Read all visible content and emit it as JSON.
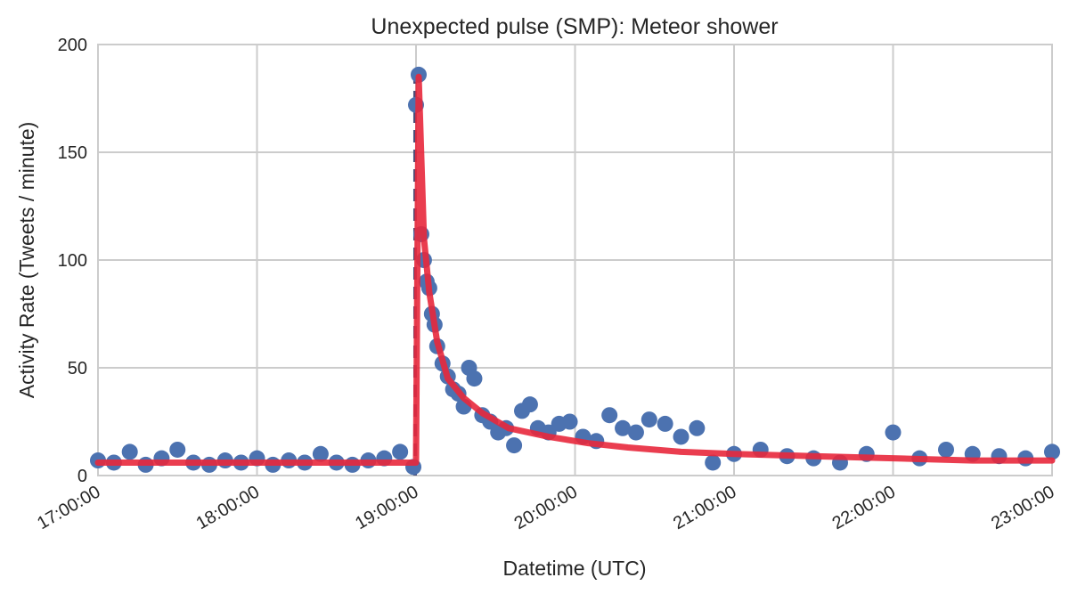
{
  "chart_data": {
    "type": "scatter",
    "title": "Unexpected pulse (SMP): Meteor shower",
    "xlabel": "Datetime (UTC)",
    "ylabel": "Activity Rate (Tweets / minute)",
    "xlim": [
      "17:00:00",
      "23:00:00"
    ],
    "ylim": [
      0,
      200
    ],
    "grid": true,
    "x_ticks": [
      "17:00:00",
      "18:00:00",
      "19:00:00",
      "20:00:00",
      "21:00:00",
      "22:00:00",
      "23:00:00"
    ],
    "y_ticks": [
      0,
      50,
      100,
      150,
      200
    ],
    "colors": {
      "points": "#4c72b0",
      "fit": "#e8283c",
      "dashed": "#4c4e78",
      "grid": "#cccccc"
    },
    "series": [
      {
        "kind": "points",
        "x": [
          "17:00:00",
          "17:06:00",
          "17:12:00",
          "17:18:00",
          "17:24:00",
          "17:30:00",
          "17:36:00",
          "17:42:00",
          "17:48:00",
          "17:54:00",
          "18:00:00",
          "18:06:00",
          "18:12:00",
          "18:18:00",
          "18:24:00",
          "18:30:00",
          "18:36:00",
          "18:42:00",
          "18:48:00",
          "18:54:00",
          "18:59:00",
          "19:00:00",
          "19:01:00",
          "19:02:00",
          "19:03:00",
          "19:04:00",
          "19:05:00",
          "19:06:00",
          "19:07:00",
          "19:08:00",
          "19:10:00",
          "19:12:00",
          "19:14:00",
          "19:16:00",
          "19:18:00",
          "19:20:00",
          "19:22:00",
          "19:25:00",
          "19:28:00",
          "19:31:00",
          "19:34:00",
          "19:37:00",
          "19:40:00",
          "19:43:00",
          "19:46:00",
          "19:50:00",
          "19:54:00",
          "19:58:00",
          "20:03:00",
          "20:08:00",
          "20:13:00",
          "20:18:00",
          "20:23:00",
          "20:28:00",
          "20:34:00",
          "20:40:00",
          "20:46:00",
          "20:52:00",
          "21:00:00",
          "21:10:00",
          "21:20:00",
          "21:30:00",
          "21:40:00",
          "21:50:00",
          "22:00:00",
          "22:10:00",
          "22:20:00",
          "22:30:00",
          "22:40:00",
          "22:50:00",
          "23:00:00"
        ],
        "y": [
          7,
          6,
          11,
          5,
          8,
          12,
          6,
          5,
          7,
          6,
          8,
          5,
          7,
          6,
          10,
          6,
          5,
          7,
          8,
          11,
          4,
          172,
          186,
          112,
          100,
          90,
          87,
          75,
          70,
          60,
          52,
          46,
          40,
          38,
          32,
          50,
          45,
          28,
          25,
          20,
          22,
          14,
          30,
          33,
          22,
          20,
          24,
          25,
          18,
          16,
          28,
          22,
          20,
          26,
          24,
          18,
          22,
          6,
          10,
          12,
          9,
          8,
          6,
          10,
          20,
          8,
          12,
          10,
          9,
          8,
          11
        ]
      },
      {
        "kind": "fit",
        "x": [
          "17:00:00",
          "19:00:00",
          "19:01:00",
          "19:03:00",
          "19:05:00",
          "19:08:00",
          "19:12:00",
          "19:18:00",
          "19:25:00",
          "19:35:00",
          "19:50:00",
          "20:05:00",
          "20:20:00",
          "20:40:00",
          "21:00:00",
          "21:30:00",
          "22:00:00",
          "22:30:00",
          "23:00:00"
        ],
        "y": [
          6,
          6,
          185,
          110,
          85,
          62,
          45,
          36,
          29,
          22,
          18,
          15,
          13,
          11,
          10,
          9,
          8,
          7,
          7
        ]
      }
    ]
  }
}
